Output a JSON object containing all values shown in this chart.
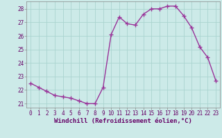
{
  "x": [
    0,
    1,
    2,
    3,
    4,
    5,
    6,
    7,
    8,
    9,
    10,
    11,
    12,
    13,
    14,
    15,
    16,
    17,
    18,
    19,
    20,
    21,
    22,
    23
  ],
  "y": [
    22.5,
    22.2,
    21.9,
    21.6,
    21.5,
    21.4,
    21.2,
    21.0,
    21.0,
    22.2,
    26.1,
    27.4,
    26.9,
    26.8,
    27.6,
    28.0,
    28.0,
    28.2,
    28.2,
    27.5,
    26.6,
    25.2,
    24.4,
    22.7
  ],
  "line_color": "#993399",
  "marker": "+",
  "marker_size": 4,
  "bg_color": "#cceae8",
  "grid_color": "#aad4d0",
  "xlabel": "Windchill (Refroidissement éolien,°C)",
  "xlim": [
    -0.5,
    23.5
  ],
  "ylim": [
    20.7,
    28.55
  ],
  "yticks": [
    21,
    22,
    23,
    24,
    25,
    26,
    27,
    28
  ],
  "xticks": [
    0,
    1,
    2,
    3,
    4,
    5,
    6,
    7,
    8,
    9,
    10,
    11,
    12,
    13,
    14,
    15,
    16,
    17,
    18,
    19,
    20,
    21,
    22,
    23
  ],
  "tick_fontsize": 5.5,
  "xlabel_fontsize": 6.5,
  "line_width": 1.0,
  "marker_edge_width": 1.0
}
